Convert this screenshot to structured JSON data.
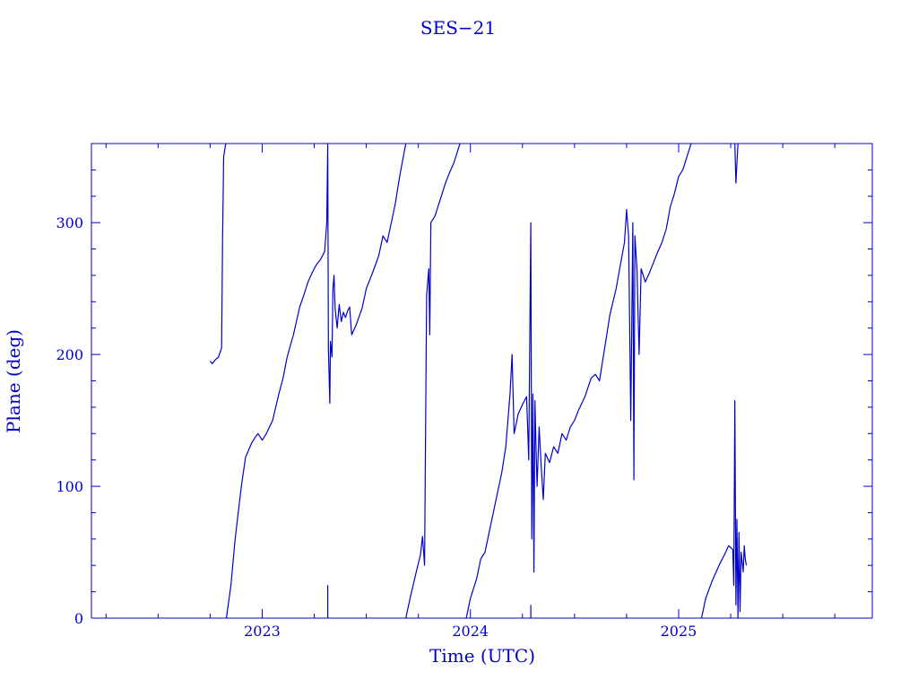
{
  "chart_data": {
    "type": "line",
    "title": "SES−21",
    "xlabel": "Time (UTC)",
    "ylabel": "Plane (deg)",
    "color": "#0000cc",
    "xlim": [
      2022.18,
      2025.93
    ],
    "ylim": [
      0,
      360
    ],
    "x_ticks": [
      {
        "value": 2023,
        "label": "2023"
      },
      {
        "value": 2024,
        "label": "2024"
      },
      {
        "value": 2025,
        "label": "2025"
      }
    ],
    "y_ticks": [
      {
        "value": 0,
        "label": "0"
      },
      {
        "value": 100,
        "label": "100"
      },
      {
        "value": 200,
        "label": "200"
      },
      {
        "value": 300,
        "label": "300"
      }
    ],
    "grid": false,
    "series": [
      {
        "points": [
          [
            2022.75,
            195
          ],
          [
            2022.76,
            193
          ],
          [
            2022.775,
            196
          ],
          [
            2022.79,
            198
          ],
          [
            2022.805,
            205
          ],
          [
            2022.81,
            290
          ],
          [
            2022.815,
            350
          ],
          [
            2022.825,
            360
          ]
        ]
      },
      {
        "points": [
          [
            2022.828,
            0
          ],
          [
            2022.85,
            25
          ],
          [
            2022.87,
            60
          ],
          [
            2022.9,
            100
          ],
          [
            2022.92,
            122
          ],
          [
            2022.95,
            133
          ],
          [
            2022.97,
            138
          ],
          [
            2022.98,
            140
          ],
          [
            2023.0,
            135
          ],
          [
            2023.02,
            140
          ],
          [
            2023.05,
            150
          ],
          [
            2023.08,
            170
          ],
          [
            2023.1,
            182
          ],
          [
            2023.12,
            198
          ],
          [
            2023.15,
            215
          ],
          [
            2023.18,
            236
          ],
          [
            2023.2,
            245
          ],
          [
            2023.22,
            255
          ],
          [
            2023.24,
            262
          ],
          [
            2023.26,
            268
          ],
          [
            2023.28,
            272
          ],
          [
            2023.3,
            278
          ],
          [
            2023.31,
            300
          ],
          [
            2023.315,
            360
          ],
          [
            2023.318,
            205
          ],
          [
            2023.325,
            163
          ],
          [
            2023.328,
            210
          ],
          [
            2023.335,
            198
          ],
          [
            2023.34,
            250
          ],
          [
            2023.345,
            260
          ],
          [
            2023.35,
            235
          ],
          [
            2023.36,
            220
          ],
          [
            2023.37,
            238
          ],
          [
            2023.38,
            225
          ],
          [
            2023.39,
            232
          ],
          [
            2023.4,
            228
          ],
          [
            2023.41,
            233
          ],
          [
            2023.42,
            236
          ],
          [
            2023.43,
            215
          ],
          [
            2023.45,
            222
          ],
          [
            2023.48,
            235
          ],
          [
            2023.5,
            250
          ],
          [
            2023.53,
            262
          ],
          [
            2023.56,
            275
          ],
          [
            2023.58,
            290
          ],
          [
            2023.6,
            285
          ],
          [
            2023.62,
            300
          ],
          [
            2023.64,
            315
          ],
          [
            2023.66,
            335
          ],
          [
            2023.68,
            352
          ],
          [
            2023.69,
            360
          ]
        ]
      },
      {
        "points": [
          [
            2023.315,
            25
          ],
          [
            2023.315,
            0
          ]
        ]
      },
      {
        "points": [
          [
            2023.69,
            0
          ],
          [
            2023.71,
            15
          ],
          [
            2023.74,
            35
          ],
          [
            2023.76,
            48
          ],
          [
            2023.77,
            62
          ],
          [
            2023.78,
            40
          ],
          [
            2023.785,
            150
          ],
          [
            2023.79,
            245
          ],
          [
            2023.8,
            265
          ],
          [
            2023.805,
            215
          ],
          [
            2023.81,
            300
          ],
          [
            2023.83,
            305
          ],
          [
            2023.86,
            320
          ],
          [
            2023.88,
            330
          ],
          [
            2023.9,
            338
          ],
          [
            2023.92,
            345
          ],
          [
            2023.94,
            355
          ],
          [
            2023.95,
            360
          ]
        ]
      },
      {
        "points": [
          [
            2023.98,
            0
          ],
          [
            2024.0,
            15
          ],
          [
            2024.03,
            30
          ],
          [
            2024.05,
            45
          ],
          [
            2024.07,
            50
          ],
          [
            2024.09,
            65
          ],
          [
            2024.11,
            80
          ],
          [
            2024.13,
            95
          ],
          [
            2024.15,
            110
          ],
          [
            2024.17,
            130
          ],
          [
            2024.19,
            170
          ],
          [
            2024.2,
            200
          ],
          [
            2024.21,
            140
          ],
          [
            2024.23,
            155
          ],
          [
            2024.25,
            162
          ],
          [
            2024.27,
            168
          ],
          [
            2024.28,
            120
          ],
          [
            2024.29,
            300
          ],
          [
            2024.295,
            60
          ],
          [
            2024.3,
            170
          ],
          [
            2024.305,
            35
          ],
          [
            2024.31,
            165
          ],
          [
            2024.315,
            130
          ],
          [
            2024.32,
            100
          ],
          [
            2024.33,
            145
          ],
          [
            2024.34,
            115
          ],
          [
            2024.35,
            90
          ],
          [
            2024.36,
            125
          ],
          [
            2024.38,
            118
          ],
          [
            2024.4,
            130
          ],
          [
            2024.42,
            125
          ],
          [
            2024.44,
            140
          ],
          [
            2024.46,
            135
          ],
          [
            2024.48,
            145
          ],
          [
            2024.5,
            150
          ],
          [
            2024.52,
            158
          ],
          [
            2024.55,
            168
          ],
          [
            2024.58,
            182
          ],
          [
            2024.6,
            185
          ],
          [
            2024.62,
            180
          ],
          [
            2024.65,
            210
          ],
          [
            2024.67,
            230
          ],
          [
            2024.7,
            250
          ],
          [
            2024.72,
            268
          ],
          [
            2024.74,
            285
          ],
          [
            2024.75,
            310
          ],
          [
            2024.76,
            290
          ],
          [
            2024.77,
            150
          ],
          [
            2024.78,
            300
          ],
          [
            2024.785,
            105
          ],
          [
            2024.79,
            290
          ],
          [
            2024.8,
            265
          ],
          [
            2024.81,
            200
          ],
          [
            2024.82,
            265
          ],
          [
            2024.84,
            255
          ],
          [
            2024.86,
            262
          ],
          [
            2024.88,
            270
          ],
          [
            2024.9,
            278
          ],
          [
            2024.92,
            285
          ],
          [
            2024.94,
            295
          ],
          [
            2024.96,
            312
          ],
          [
            2024.98,
            322
          ],
          [
            2025.0,
            335
          ],
          [
            2025.02,
            340
          ],
          [
            2025.04,
            350
          ],
          [
            2025.06,
            360
          ]
        ]
      },
      {
        "points": [
          [
            2024.29,
            0
          ],
          [
            2024.29,
            10
          ]
        ]
      },
      {
        "points": [
          [
            2025.11,
            0
          ],
          [
            2025.13,
            15
          ],
          [
            2025.16,
            28
          ],
          [
            2025.18,
            35
          ],
          [
            2025.2,
            42
          ],
          [
            2025.22,
            48
          ],
          [
            2025.24,
            55
          ],
          [
            2025.26,
            52
          ],
          [
            2025.265,
            25
          ],
          [
            2025.27,
            165
          ],
          [
            2025.275,
            10
          ],
          [
            2025.28,
            75
          ],
          [
            2025.285,
            0
          ],
          [
            2025.29,
            65
          ],
          [
            2025.295,
            5
          ],
          [
            2025.3,
            50
          ],
          [
            2025.31,
            35
          ],
          [
            2025.315,
            55
          ],
          [
            2025.32,
            45
          ],
          [
            2025.325,
            40
          ]
        ]
      },
      {
        "points": [
          [
            2025.27,
            360
          ],
          [
            2025.275,
            330
          ],
          [
            2025.28,
            345
          ],
          [
            2025.285,
            360
          ]
        ]
      }
    ]
  }
}
